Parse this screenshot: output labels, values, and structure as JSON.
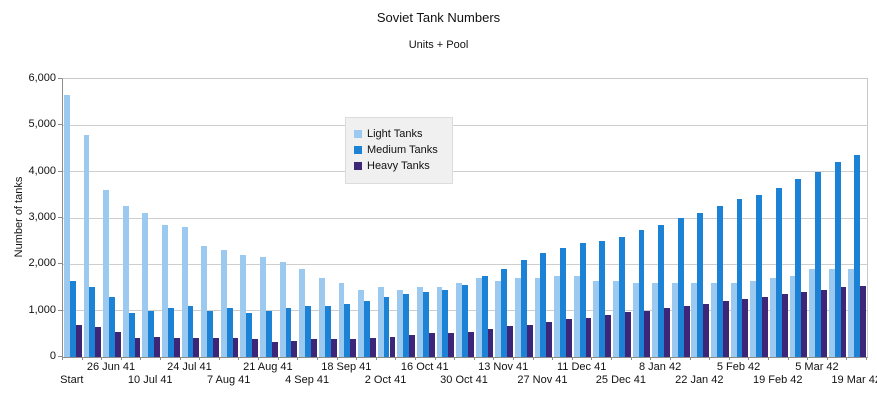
{
  "header": {
    "title": "Soviet Tank Numbers",
    "subtitle": "Units + Pool"
  },
  "chart_data": {
    "type": "bar",
    "title": "Soviet Tank Numbers",
    "subtitle": "Units + Pool",
    "xlabel": "",
    "ylabel": "Number of tanks",
    "ylim": [
      0,
      6000
    ],
    "y_tick_step": 1000,
    "y_tick_labels": [
      "0",
      "1,000",
      "2,000",
      "3,000",
      "4,000",
      "5,000",
      "6,000"
    ],
    "grid": true,
    "legend_position": "upper-center",
    "n_groups": 41,
    "x_tick_label_every_n_groups": 2,
    "x_tick_labels": [
      "Start",
      "26 Jun 41",
      "10 Jul 41",
      "24 Jul 41",
      "7 Aug 41",
      "21 Aug 41",
      "4 Sep 41",
      "18 Sep 41",
      "2 Oct 41",
      "16 Oct 41",
      "30 Oct 41",
      "13 Nov 41",
      "27 Nov 41",
      "11 Dec 41",
      "25 Dec 41",
      "8 Jan 42",
      "22 Jan 42",
      "5 Feb 42",
      "19 Feb 42",
      "5 Mar 42",
      "19 Mar 42"
    ],
    "series": [
      {
        "name": "Light Tanks",
        "color": "#9CC9F0",
        "values": [
          5650,
          4800,
          3600,
          3250,
          3100,
          2850,
          2800,
          2400,
          2300,
          2200,
          2150,
          2050,
          1900,
          1700,
          1600,
          1450,
          1500,
          1450,
          1500,
          1500,
          1600,
          1700,
          1650,
          1700,
          1700,
          1750,
          1750,
          1650,
          1650,
          1600,
          1600,
          1600,
          1600,
          1600,
          1600,
          1650,
          1700,
          1750,
          1900,
          1900,
          1900
        ]
      },
      {
        "name": "Medium Tanks",
        "color": "#1B82D6",
        "values": [
          1650,
          1500,
          1300,
          950,
          1000,
          1050,
          1100,
          1000,
          1050,
          950,
          1000,
          1050,
          1100,
          1100,
          1150,
          1200,
          1300,
          1350,
          1400,
          1450,
          1550,
          1750,
          1900,
          2100,
          2250,
          2350,
          2450,
          2500,
          2600,
          2750,
          2850,
          3000,
          3100,
          3250,
          3400,
          3500,
          3650,
          3850,
          4000,
          4200,
          4350
        ]
      },
      {
        "name": "Heavy Tanks",
        "color": "#3D2578",
        "values": [
          700,
          650,
          550,
          400,
          430,
          400,
          400,
          400,
          400,
          390,
          330,
          350,
          390,
          380,
          380,
          420,
          430,
          480,
          520,
          510,
          540,
          600,
          660,
          700,
          760,
          820,
          850,
          900,
          970,
          1000,
          1050,
          1100,
          1150,
          1200,
          1250,
          1300,
          1350,
          1400,
          1450,
          1500,
          1530
        ]
      }
    ]
  },
  "style_colors": {
    "gridline": "#cecece",
    "axis": "#8c8c8c",
    "plot_border": "#c9c9c9",
    "legend_background": "#f0f0f0",
    "text": "#111111"
  }
}
